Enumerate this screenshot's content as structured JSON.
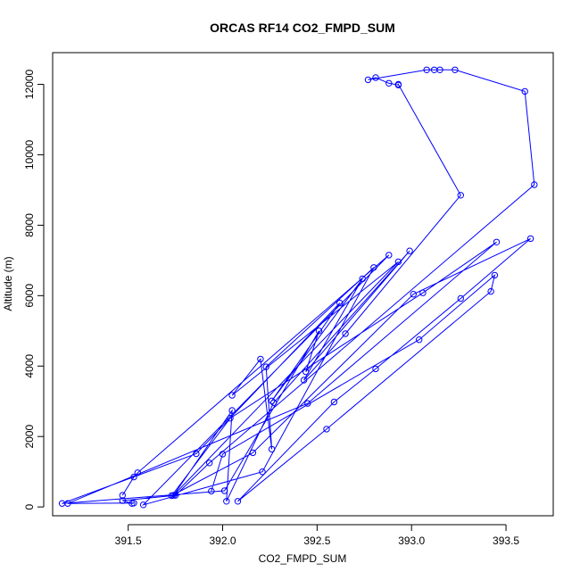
{
  "chart_data": {
    "type": "line",
    "title": "ORCAS RF14 CO2_FMPD_SUM",
    "xlabel": "CO2_FMPD_SUM",
    "ylabel": "Altitude (m)",
    "xlim": [
      391.1,
      393.75
    ],
    "ylim": [
      -250,
      12900
    ],
    "xticks": [
      391.5,
      392.0,
      392.5,
      393.0,
      393.5
    ],
    "xtick_labels": [
      "391.5",
      "392.0",
      "392.5",
      "393.0",
      "393.5"
    ],
    "yticks": [
      0,
      2000,
      4000,
      6000,
      8000,
      10000,
      12000
    ],
    "ytick_labels": [
      "0",
      "2000",
      "4000",
      "6000",
      "8000",
      "10000",
      "12000"
    ],
    "grid": false,
    "color": "#0000ff",
    "markers": "open-circle",
    "series": [
      {
        "points": [
          [
            391.47,
            330
          ],
          [
            391.53,
            850
          ],
          [
            391.55,
            970
          ],
          [
            392.88,
            7150
          ],
          [
            391.58,
            60
          ],
          [
            392.21,
            1000
          ],
          [
            392.8,
            6800
          ],
          [
            392.23,
            3980
          ],
          [
            392.26,
            1640
          ],
          [
            392.2,
            4200
          ],
          [
            392.05,
            3170
          ],
          [
            392.93,
            6960
          ],
          [
            391.74,
            330
          ],
          [
            392.05,
            2740
          ],
          [
            392.02,
            160
          ],
          [
            392.27,
            2960
          ],
          [
            392.99,
            7270
          ],
          [
            392.44,
            3840
          ],
          [
            392.51,
            5000
          ],
          [
            392.01,
            460
          ],
          [
            391.15,
            100
          ],
          [
            391.86,
            1510
          ],
          [
            392.62,
            5790
          ],
          [
            392.26,
            3010
          ],
          [
            392.74,
            6480
          ],
          [
            392.43,
            3600
          ],
          [
            392.65,
            4920
          ],
          [
            393.26,
            8850
          ],
          [
            392.93,
            12000
          ],
          [
            392.93,
            11980
          ],
          [
            392.88,
            12030
          ],
          [
            392.81,
            12190
          ],
          [
            392.77,
            12130
          ],
          [
            393.08,
            12410
          ],
          [
            393.12,
            12410
          ],
          [
            393.15,
            12410
          ],
          [
            393.23,
            12410
          ],
          [
            393.6,
            11800
          ],
          [
            393.65,
            9150
          ],
          [
            391.93,
            1250
          ],
          [
            391.75,
            330
          ],
          [
            391.47,
            180
          ],
          [
            391.52,
            100
          ],
          [
            391.53,
            110
          ],
          [
            391.18,
            100
          ],
          [
            392.45,
            2940
          ],
          [
            393.45,
            7520
          ],
          [
            393.06,
            6080
          ],
          [
            392.04,
            2520
          ],
          [
            391.73,
            320
          ],
          [
            392.16,
            1540
          ],
          [
            393.01,
            6040
          ],
          [
            393.63,
            7620
          ],
          [
            393.26,
            5920
          ],
          [
            392.81,
            3920
          ],
          [
            392.59,
            2980
          ],
          [
            392.08,
            160
          ],
          [
            392.55,
            2210
          ],
          [
            393.42,
            6120
          ],
          [
            393.44,
            6580
          ],
          [
            393.04,
            4750
          ],
          [
            392.0,
            1500
          ],
          [
            391.94,
            450
          ]
        ]
      }
    ]
  }
}
